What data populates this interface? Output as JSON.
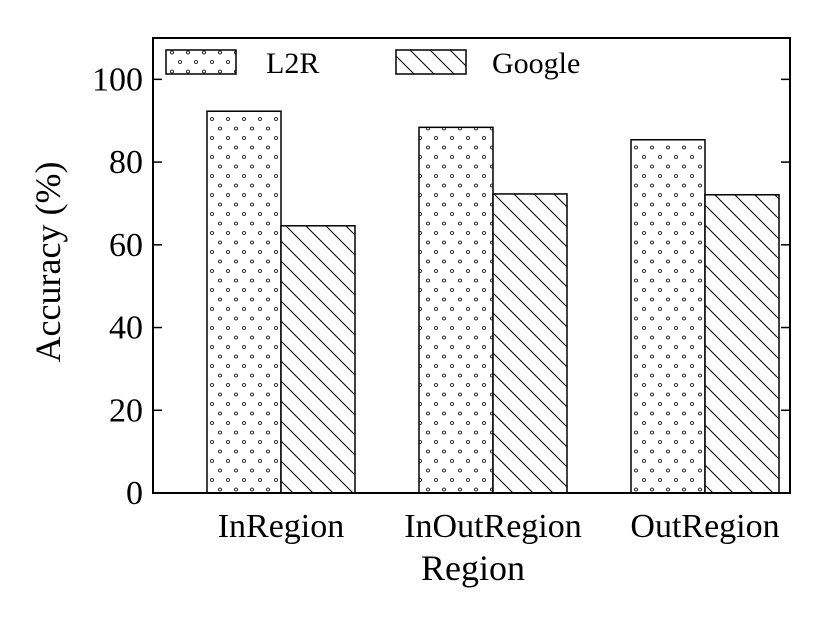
{
  "chart_data": {
    "type": "bar",
    "categories": [
      "InRegion",
      "InOutRegion",
      "OutRegion"
    ],
    "series": [
      {
        "name": "L2R",
        "values": [
          92.3,
          88.4,
          85.4
        ],
        "pattern": "dots"
      },
      {
        "name": "Google",
        "values": [
          64.6,
          72.3,
          72.1
        ],
        "pattern": "diagonal-hatch"
      }
    ],
    "xlabel": "Region",
    "ylabel": "Accuracy (%)",
    "ylim": [
      0,
      110
    ],
    "yticks": [
      0,
      20,
      40,
      60,
      80,
      100
    ],
    "grid": false,
    "legend_position": "top",
    "colors": {
      "bar_fill": "#ffffff",
      "stroke": "#000000"
    }
  }
}
